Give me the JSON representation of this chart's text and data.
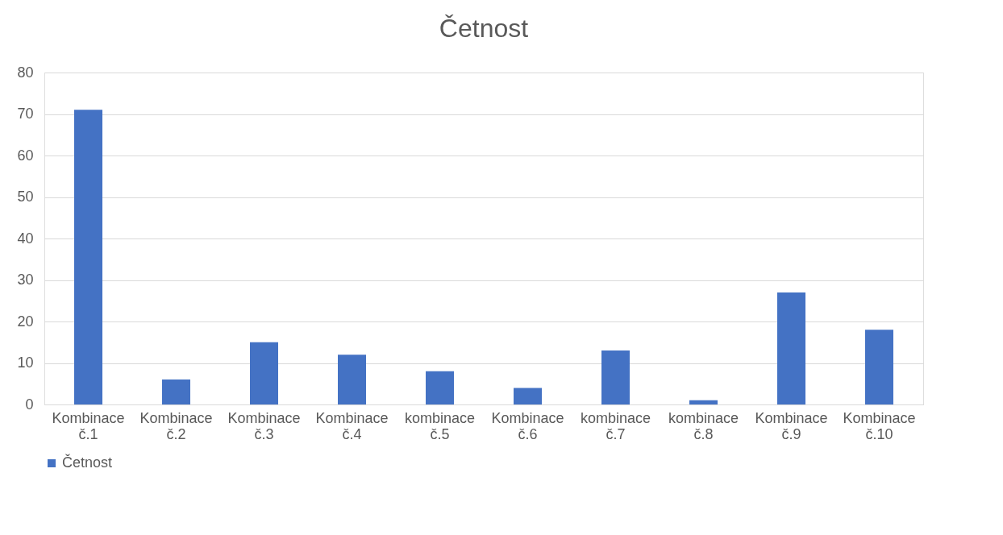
{
  "chart_data": {
    "type": "bar",
    "title": "Četnost",
    "categories": [
      "Kombinace č.1",
      "Kombinace č.2",
      "Kombinace č.3",
      "Kombinace č.4",
      "kombinace č.5",
      "Kombinace č.6",
      "kombinace č.7",
      "kombinace č.8",
      "Kombinace č.9",
      "Kombinace č.10"
    ],
    "series": [
      {
        "name": "Četnost",
        "color": "#4472c4",
        "values": [
          71,
          6,
          15,
          12,
          8,
          4,
          13,
          1,
          27,
          18
        ]
      }
    ],
    "ylim": [
      0,
      80
    ],
    "yticks": [
      0,
      10,
      20,
      30,
      40,
      50,
      60,
      70,
      80
    ],
    "grid": "y",
    "legend": "bottom"
  }
}
